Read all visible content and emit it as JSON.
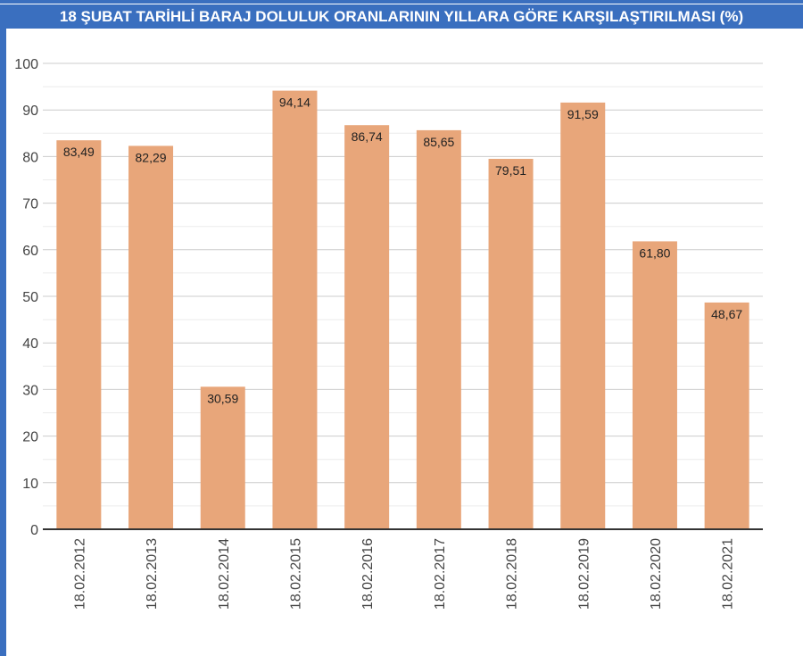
{
  "chart_data": {
    "type": "bar",
    "title": "18 ŞUBAT TARİHLİ BARAJ DOLULUK ORANLARININ YILLARA GÖRE KARŞILAŞTIRILMASI (%)",
    "categories": [
      "18.02.2012",
      "18.02.2013",
      "18.02.2014",
      "18.02.2015",
      "18.02.2016",
      "18.02.2017",
      "18.02.2018",
      "18.02.2019",
      "18.02.2020",
      "18.02.2021"
    ],
    "values": [
      83.49,
      82.29,
      30.59,
      94.14,
      86.74,
      85.65,
      79.51,
      91.59,
      61.8,
      48.67
    ],
    "value_labels": [
      "83,49",
      "82,29",
      "30,59",
      "94,14",
      "86,74",
      "85,65",
      "79,51",
      "91,59",
      "61,80",
      "48,67"
    ],
    "xlabel": "",
    "ylabel": "",
    "ylim": [
      0,
      100
    ],
    "yticks": [
      "0",
      "10",
      "20",
      "30",
      "40",
      "50",
      "60",
      "70",
      "80",
      "90",
      "100"
    ],
    "grid": true,
    "colors": {
      "bar": "#e8a67a",
      "header": "#3a6fbf"
    }
  }
}
